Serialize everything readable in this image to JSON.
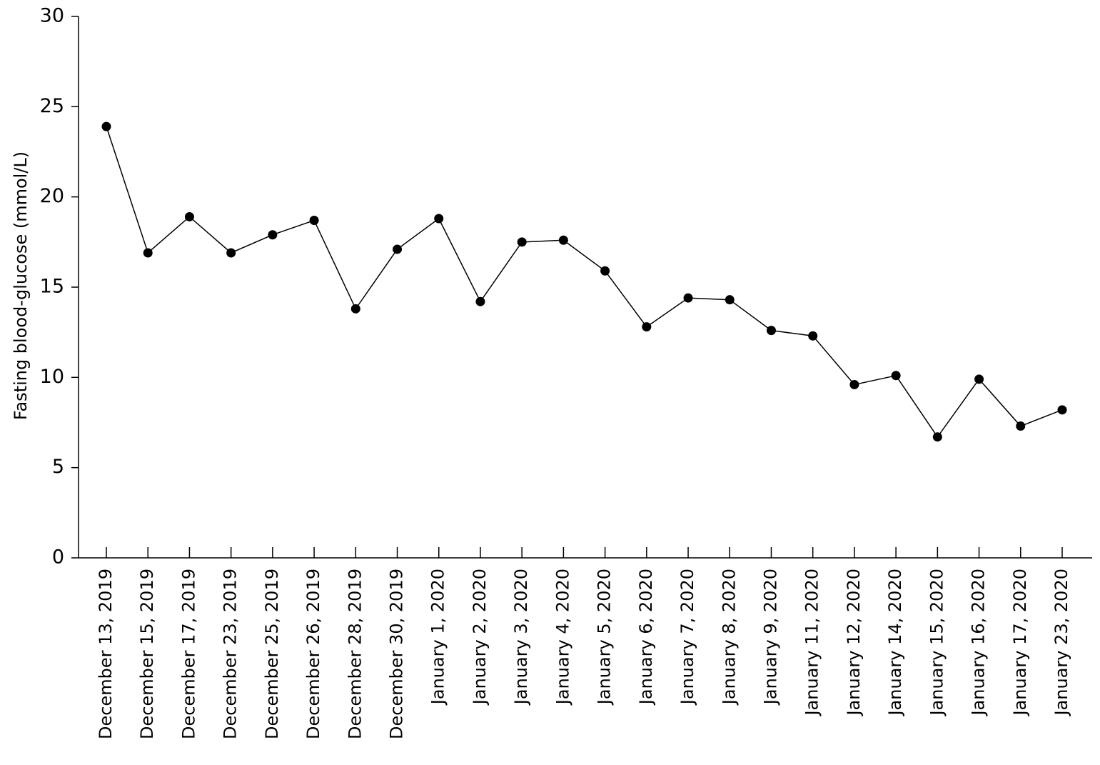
{
  "chart_data": {
    "type": "line",
    "y_label": "Fasting blood-glucose (mmol/L)",
    "categories": [
      "December 13, 2019",
      "December 15, 2019",
      "December 17, 2019",
      "December 23, 2019",
      "December 25, 2019",
      "December 26, 2019",
      "December 28, 2019",
      "December 30, 2019",
      "January 1, 2020",
      "January 2, 2020",
      "January 3, 2020",
      "January 4, 2020",
      "January 5, 2020",
      "January 6, 2020",
      "January 7, 2020",
      "January 8, 2020",
      "January 9, 2020",
      "January 11, 2020",
      "January 12, 2020",
      "January 14, 2020",
      "January 15, 2020",
      "January 16, 2020",
      "January 17, 2020",
      "January 23, 2020"
    ],
    "values": [
      23.9,
      16.9,
      18.9,
      16.9,
      17.9,
      18.7,
      13.8,
      17.1,
      18.8,
      14.2,
      17.5,
      17.6,
      15.9,
      12.8,
      14.4,
      14.3,
      12.6,
      12.3,
      9.6,
      10.1,
      6.7,
      9.9,
      7.3,
      8.2
    ],
    "color": "#000000",
    "ylim": [
      0,
      30
    ],
    "yticks": [
      0,
      5,
      10,
      15,
      20,
      25,
      30
    ],
    "grid": false
  }
}
